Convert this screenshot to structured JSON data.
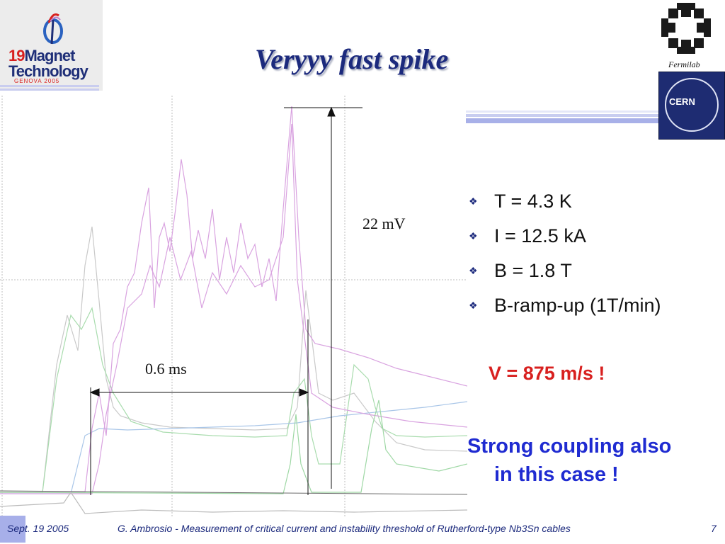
{
  "slide": {
    "title": "Veryyy fast spike",
    "page_number": "7"
  },
  "logos": {
    "conference": {
      "number": "19",
      "line1": "Magnet",
      "line2": "Technology",
      "line3": "GENOVA 2005"
    },
    "fermilab_label": "Fermilab",
    "cern_label": "CERN"
  },
  "annotations": {
    "voltage": "22 mV",
    "time": "0.6 ms"
  },
  "bullets": [
    {
      "text": "T = 4.3 K"
    },
    {
      "text": "I = 12.5 kA"
    },
    {
      "text": "B = 1.8 T"
    },
    {
      "text": "B-ramp-up (1T/min)"
    }
  ],
  "velocity": "V = 875 m/s !",
  "conclusion": {
    "line1": "Strong coupling also",
    "line2": "in this case !"
  },
  "footer": {
    "date": "Sept. 19 2005",
    "credit": "G. Ambrosio - Measurement of critical current and instability threshold of Rutherford-type Nb3Sn cables"
  },
  "colors": {
    "title": "#1c2a7d",
    "velocity": "#d8201f",
    "conclusion": "#1f2bd1",
    "trace_pink": "#d9a3e0",
    "trace_green": "#a9dcae",
    "trace_gray": "#c8c8c8",
    "trace_blue": "#a9c6e8"
  }
}
